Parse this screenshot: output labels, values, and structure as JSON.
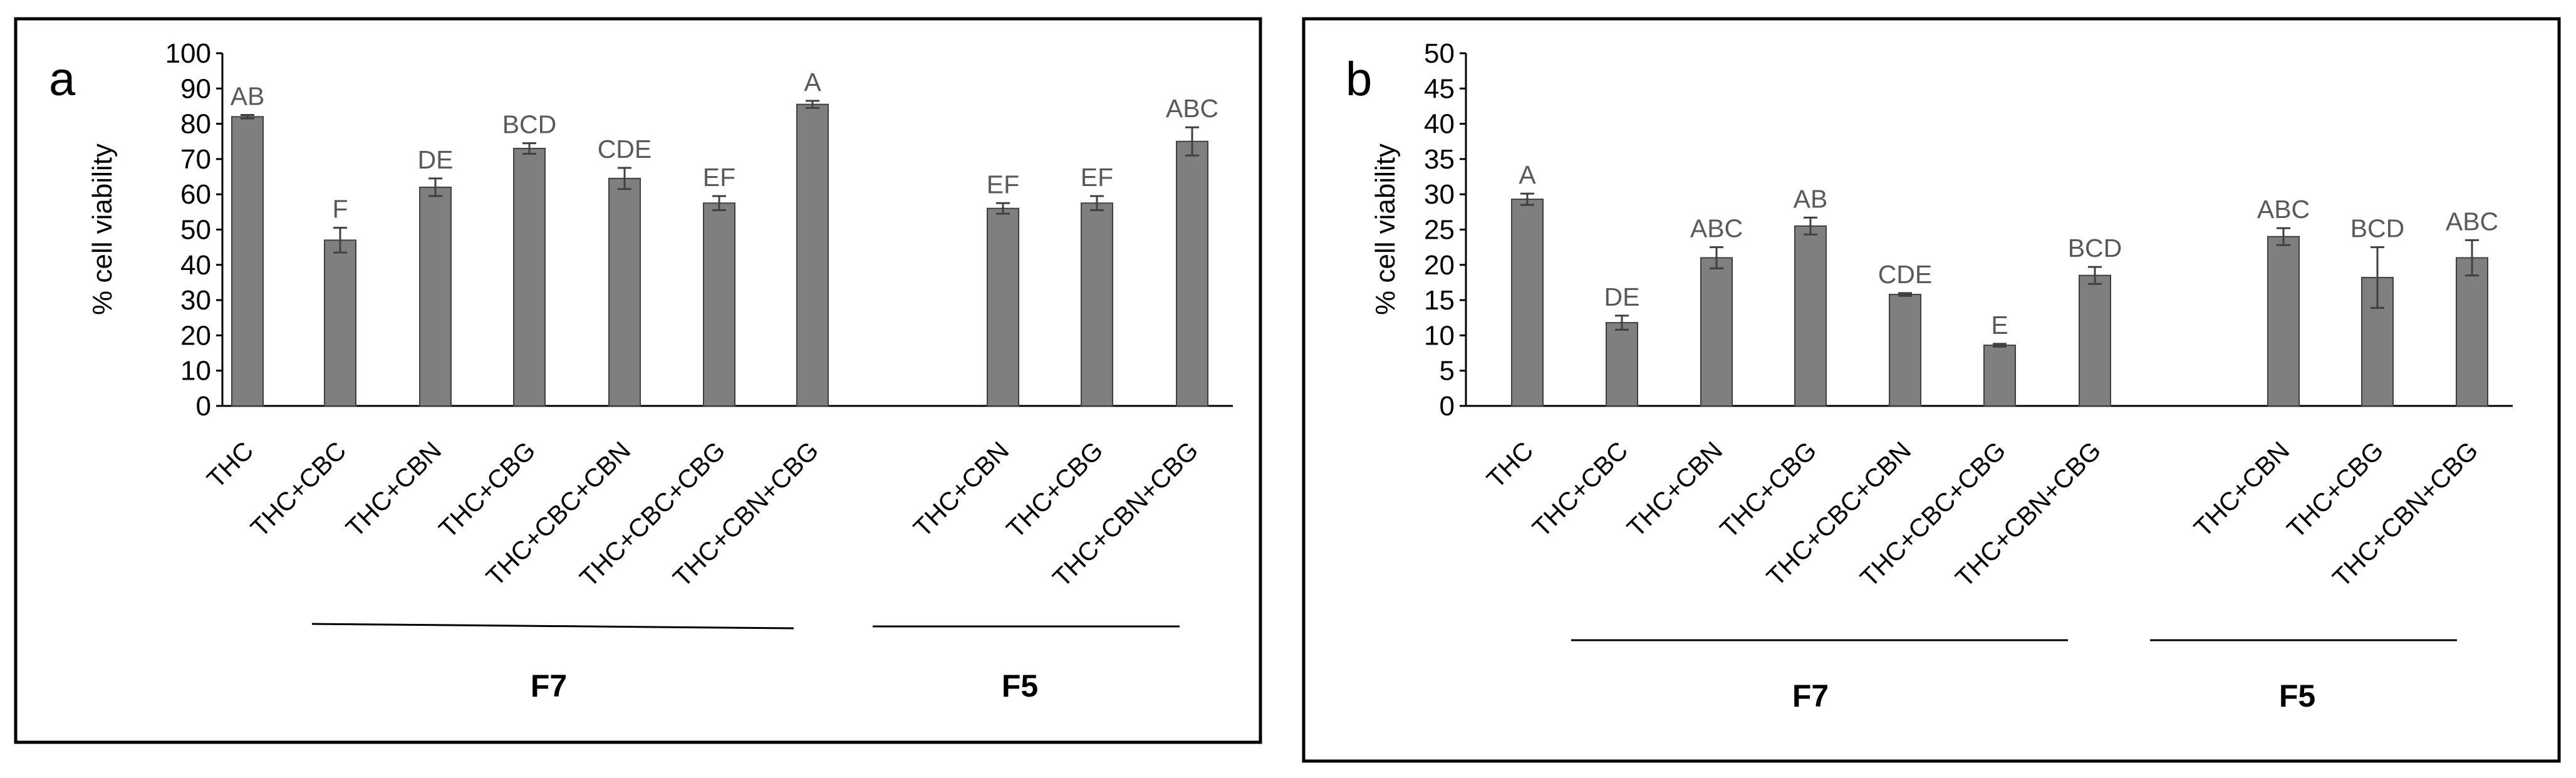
{
  "chart_data": [
    {
      "type": "bar",
      "panel_label": "a",
      "ylabel": "% cell viability",
      "ylim": [
        0,
        100
      ],
      "yticks": [
        0,
        10,
        20,
        30,
        40,
        50,
        60,
        70,
        80,
        90,
        100
      ],
      "categories": [
        "THC",
        "THC+CBC",
        "THC+CBN",
        "THC+CBG",
        "THC+CBC+CBN",
        "THC+CBC+CBG",
        "THC+CBN+CBG",
        "THC+CBN",
        "THC+CBG",
        "THC+CBN+CBG"
      ],
      "values": [
        82,
        47,
        62,
        73,
        64.5,
        57.5,
        85.5,
        56,
        57.5,
        75
      ],
      "errors": [
        0.5,
        3.5,
        2.5,
        1.5,
        3,
        2,
        1,
        1.5,
        2,
        4
      ],
      "significance": [
        "AB",
        "F",
        "DE",
        "BCD",
        "CDE",
        "EF",
        "A",
        "EF",
        "EF",
        "ABC"
      ],
      "groups": [
        {
          "label": "F7",
          "start": 1,
          "end": 6
        },
        {
          "label": "F5",
          "start": 7,
          "end": 9
        }
      ],
      "bar_color": "#7f7f7f",
      "grid": false
    },
    {
      "type": "bar",
      "panel_label": "b",
      "ylabel": "% cell viability",
      "ylim": [
        0,
        50
      ],
      "yticks": [
        0,
        5,
        10,
        15,
        20,
        25,
        30,
        35,
        40,
        45,
        50
      ],
      "categories": [
        "THC",
        "THC+CBC",
        "THC+CBN",
        "THC+CBG",
        "THC+CBC+CBN",
        "THC+CBC+CBG",
        "THC+CBN+CBG",
        "THC+CBN",
        "THC+CBG",
        "THC+CBN+CBG"
      ],
      "values": [
        29.3,
        11.8,
        21,
        25.5,
        15.8,
        8.6,
        18.5,
        24,
        18.2,
        21
      ],
      "errors": [
        0.8,
        1,
        1.5,
        1.2,
        0.2,
        0.2,
        1.2,
        1.2,
        4.3,
        2.5
      ],
      "significance": [
        "A",
        "DE",
        "ABC",
        "AB",
        "CDE",
        "E",
        "BCD",
        "ABC",
        "BCD",
        "ABC"
      ],
      "groups": [
        {
          "label": "F7",
          "start": 1,
          "end": 6
        },
        {
          "label": "F5",
          "start": 7,
          "end": 9
        }
      ],
      "bar_color": "#7f7f7f",
      "grid": false
    }
  ]
}
